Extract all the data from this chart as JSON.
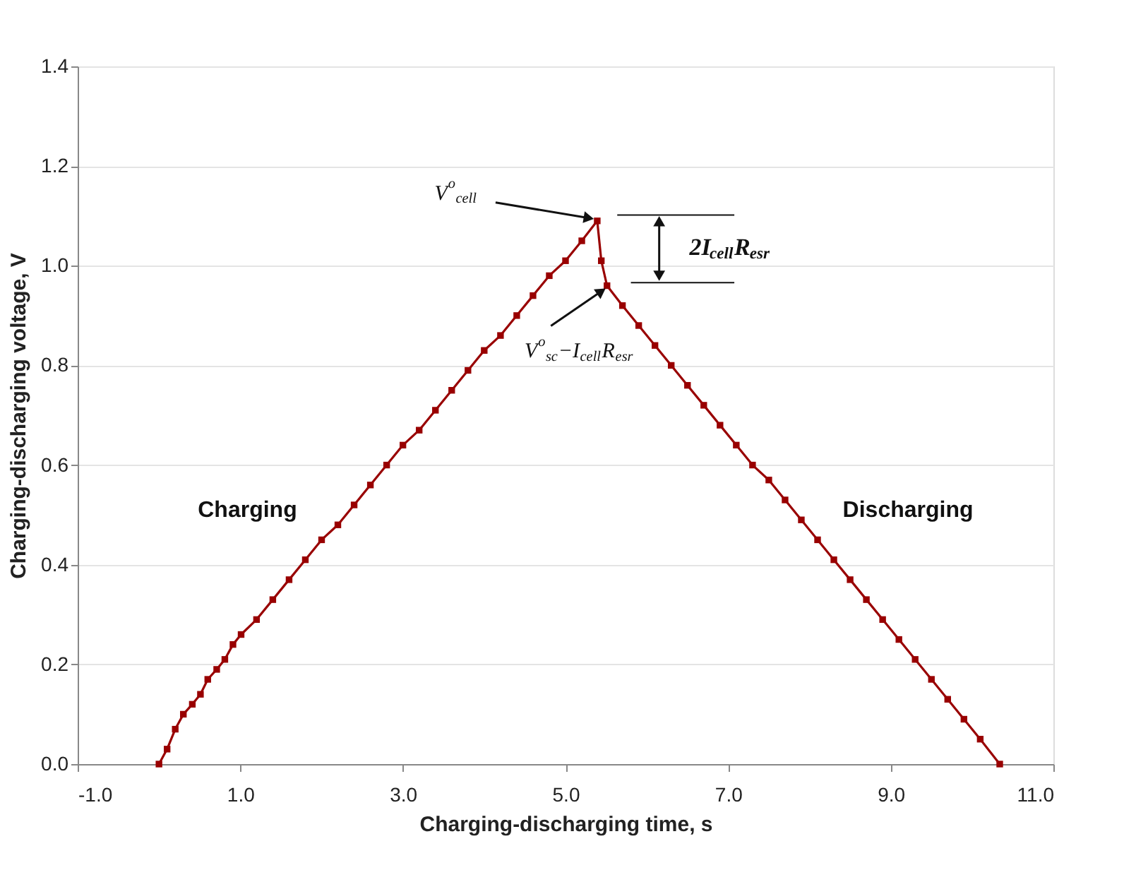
{
  "chart_data": {
    "type": "line",
    "xlabel": "Charging-discharging time, s",
    "ylabel": "Charging-discharging voltage, V",
    "x": [
      0,
      0.1,
      0.2,
      0.3,
      0.41,
      0.51,
      0.6,
      0.71,
      0.81,
      0.91,
      1.01,
      1.2,
      1.4,
      1.6,
      1.8,
      2.0,
      2.2,
      2.4,
      2.6,
      2.8,
      3.0,
      3.2,
      3.4,
      3.6,
      3.8,
      4.0,
      4.2,
      4.4,
      4.6,
      4.8,
      5.0,
      5.2,
      5.39,
      5.44,
      5.51,
      5.7,
      5.9,
      6.1,
      6.3,
      6.5,
      6.7,
      6.9,
      7.1,
      7.3,
      7.5,
      7.7,
      7.9,
      8.1,
      8.3,
      8.5,
      8.7,
      8.9,
      9.1,
      9.3,
      9.5,
      9.7,
      9.9,
      10.1,
      10.34
    ],
    "series": [
      {
        "color": "#990000",
        "values": [
          0,
          0.03,
          0.07,
          0.1,
          0.12,
          0.14,
          0.17,
          0.19,
          0.21,
          0.24,
          0.26,
          0.29,
          0.33,
          0.37,
          0.41,
          0.45,
          0.48,
          0.52,
          0.56,
          0.6,
          0.64,
          0.67,
          0.71,
          0.75,
          0.79,
          0.83,
          0.86,
          0.9,
          0.94,
          0.98,
          1.01,
          1.05,
          1.09,
          1.01,
          0.96,
          0.92,
          0.88,
          0.84,
          0.8,
          0.76,
          0.72,
          0.68,
          0.64,
          0.6,
          0.57,
          0.53,
          0.49,
          0.45,
          0.41,
          0.37,
          0.33,
          0.29,
          0.25,
          0.21,
          0.17,
          0.13,
          0.09,
          0.05,
          0
        ]
      }
    ],
    "xlim": [
      -1,
      11
    ],
    "ylim": [
      0,
      1.4
    ],
    "xticks": [
      {
        "value": -1,
        "label": "-1.0"
      },
      {
        "value": 1,
        "label": "1.0"
      },
      {
        "value": 3,
        "label": "3.0"
      },
      {
        "value": 5,
        "label": "5.0"
      },
      {
        "value": 7,
        "label": "7.0"
      },
      {
        "value": 9,
        "label": "9.0"
      },
      {
        "value": 11,
        "label": "11.0"
      }
    ],
    "yticks": [
      {
        "value": 0,
        "label": "0.0"
      },
      {
        "value": 0.2,
        "label": "0.2"
      },
      {
        "value": 0.4,
        "label": "0.4"
      },
      {
        "value": 0.6,
        "label": "0.6"
      },
      {
        "value": 0.8,
        "label": "0.8"
      },
      {
        "value": 1.0,
        "label": "1.0"
      },
      {
        "value": 1.2,
        "label": "1.2"
      },
      {
        "value": 1.4,
        "label": "1.4"
      }
    ],
    "annotations": [
      "Charging",
      "Discharging",
      {
        "text": "V$^{o}$$_{cell}$",
        "x": 5.39,
        "y": 1.09
      },
      {
        "text": "V$^{o}$$_{sc}$−I$_{cell}$R$_{esr}$",
        "x": 5.51,
        "y": 0.96
      },
      "2I$_{cell}$R$_{esr}$"
    ],
    "grid": "y",
    "marker": "square",
    "line_style": "solid"
  }
}
